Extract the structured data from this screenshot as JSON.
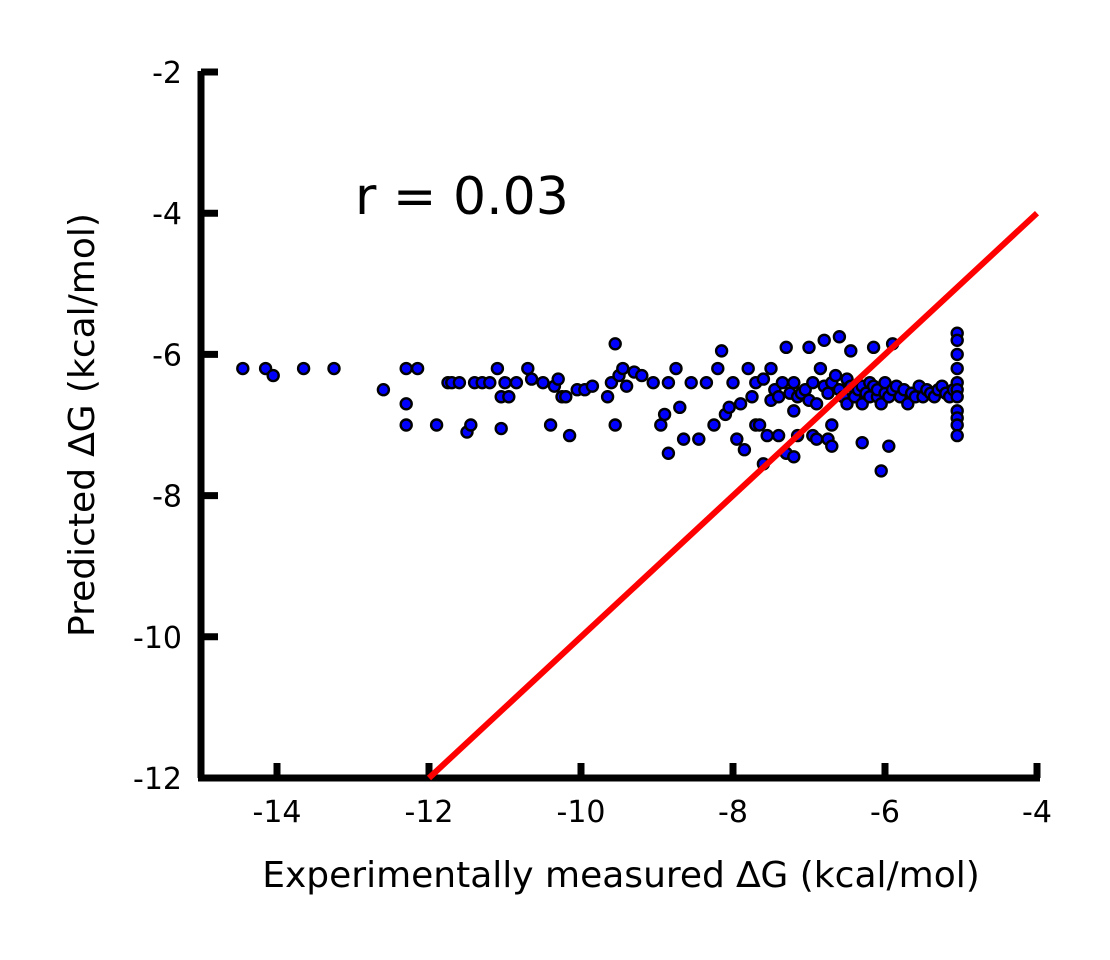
{
  "chart_data": {
    "type": "scatter",
    "title": "",
    "xlabel": "Experimentally measured ∆G (kcal/mol)",
    "ylabel": "Predicted ∆G (kcal/mol)",
    "xlim": [
      -15,
      -4
    ],
    "ylim": [
      -12,
      -2
    ],
    "x_ticks": [
      -14,
      -12,
      -10,
      -8,
      -6,
      -4
    ],
    "y_ticks": [
      -12,
      -10,
      -8,
      -6,
      -4,
      -2
    ],
    "x_tick_labels": [
      "-14",
      "-12",
      "-10",
      "-8",
      "-6",
      "-4"
    ],
    "y_tick_labels": [
      "-12",
      "-10",
      "-8",
      "-6",
      "-4",
      "-2"
    ],
    "grid": false,
    "legend": "none",
    "annotation": "r = 0.03",
    "colors": {
      "points": "#0000ff",
      "point_edge": "#000000",
      "reference_line": "#ff0000",
      "axes": "#000000"
    },
    "reference_line": {
      "name": "",
      "x": [
        -12,
        -4
      ],
      "y": [
        -12,
        -4
      ]
    },
    "series": [
      {
        "name": "",
        "x": [
          -14.45,
          -14.15,
          -14.05,
          -13.65,
          -13.25,
          -12.6,
          -12.3,
          -12.3,
          -12.3,
          -12.15,
          -11.9,
          -11.75,
          -11.7,
          -11.6,
          -11.5,
          -11.45,
          -11.4,
          -11.3,
          -11.2,
          -11.1,
          -11.05,
          -11.05,
          -11.0,
          -10.95,
          -10.85,
          -10.7,
          -10.65,
          -10.5,
          -10.4,
          -10.35,
          -10.3,
          -10.25,
          -10.2,
          -10.15,
          -10.05,
          -9.95,
          -9.85,
          -9.65,
          -9.6,
          -9.55,
          -9.55,
          -9.5,
          -9.45,
          -9.4,
          -9.3,
          -9.2,
          -9.05,
          -8.95,
          -8.9,
          -8.85,
          -8.85,
          -8.75,
          -8.7,
          -8.65,
          -8.55,
          -8.45,
          -8.35,
          -8.25,
          -8.2,
          -8.15,
          -8.1,
          -8.05,
          -8.0,
          -7.95,
          -7.9,
          -7.85,
          -7.8,
          -7.75,
          -7.7,
          -7.7,
          -7.65,
          -7.6,
          -7.55,
          -7.5,
          -7.5,
          -7.45,
          -7.4,
          -7.35,
          -7.3,
          -7.3,
          -7.25,
          -7.2,
          -7.2,
          -7.15,
          -7.1,
          -7.05,
          -7.0,
          -6.95,
          -6.95,
          -6.9,
          -6.85,
          -6.8,
          -6.75,
          -6.7,
          -6.7,
          -6.65,
          -6.6,
          -6.55,
          -6.5,
          -6.5,
          -6.45,
          -6.4,
          -6.35,
          -6.3,
          -6.3,
          -6.25,
          -6.2,
          -6.2,
          -6.15,
          -6.1,
          -6.1,
          -6.05,
          -6.0,
          -6.0,
          -5.95,
          -5.9,
          -5.85,
          -5.8,
          -5.75,
          -5.7,
          -5.65,
          -5.6,
          -5.55,
          -5.5,
          -5.45,
          -5.4,
          -5.35,
          -5.3,
          -5.25,
          -5.2,
          -5.15,
          -5.1,
          -5.05,
          -5.05,
          -5.05,
          -5.05,
          -5.05,
          -5.05,
          -5.05,
          -5.05,
          -5.05,
          -5.05,
          -5.05,
          -7.2,
          -7.6,
          -6.3,
          -6.9,
          -7.4,
          -6.8,
          -7.0,
          -6.6,
          -5.9,
          -6.15,
          -6.45,
          -6.75,
          -5.95,
          -6.7,
          -7.15,
          -6.05
        ],
        "y": [
          -6.2,
          -6.2,
          -6.3,
          -6.2,
          -6.2,
          -6.5,
          -6.2,
          -6.7,
          -7.0,
          -6.2,
          -7.0,
          -6.4,
          -6.4,
          -6.4,
          -7.1,
          -7.0,
          -6.4,
          -6.4,
          -6.4,
          -6.2,
          -6.6,
          -7.05,
          -6.4,
          -6.6,
          -6.4,
          -6.2,
          -6.35,
          -6.4,
          -7.0,
          -6.45,
          -6.35,
          -6.6,
          -6.6,
          -7.15,
          -6.5,
          -6.5,
          -6.45,
          -6.6,
          -6.4,
          -7.0,
          -5.85,
          -6.3,
          -6.2,
          -6.45,
          -6.25,
          -6.3,
          -6.4,
          -7.0,
          -6.85,
          -7.4,
          -6.4,
          -6.2,
          -6.75,
          -7.2,
          -6.4,
          -7.2,
          -6.4,
          -7.0,
          -6.2,
          -5.95,
          -6.85,
          -6.75,
          -6.4,
          -7.2,
          -6.7,
          -7.35,
          -6.2,
          -6.6,
          -7.0,
          -6.4,
          -7.0,
          -6.35,
          -7.15,
          -6.2,
          -6.65,
          -6.5,
          -6.6,
          -6.4,
          -7.4,
          -5.9,
          -6.55,
          -6.4,
          -6.8,
          -6.6,
          -6.55,
          -6.5,
          -6.65,
          -6.4,
          -7.15,
          -6.7,
          -6.2,
          -6.45,
          -6.55,
          -7.0,
          -6.4,
          -6.3,
          -6.5,
          -6.6,
          -6.7,
          -6.35,
          -6.45,
          -6.6,
          -6.5,
          -6.7,
          -6.45,
          -6.55,
          -6.6,
          -6.4,
          -6.45,
          -6.6,
          -6.5,
          -6.7,
          -6.55,
          -6.4,
          -6.6,
          -6.5,
          -6.45,
          -6.6,
          -6.5,
          -6.7,
          -6.55,
          -6.6,
          -6.45,
          -6.6,
          -6.5,
          -6.55,
          -6.6,
          -6.5,
          -6.45,
          -6.55,
          -6.6,
          -6.5,
          -5.7,
          -5.8,
          -6.0,
          -6.2,
          -6.4,
          -6.5,
          -6.6,
          -6.8,
          -6.9,
          -7.0,
          -7.15,
          -7.45,
          -7.55,
          -7.25,
          -7.2,
          -7.15,
          -5.8,
          -5.9,
          -5.75,
          -5.85,
          -5.9,
          -5.95,
          -7.2,
          -7.3,
          -7.3,
          -7.15,
          -7.65
        ]
      }
    ]
  }
}
